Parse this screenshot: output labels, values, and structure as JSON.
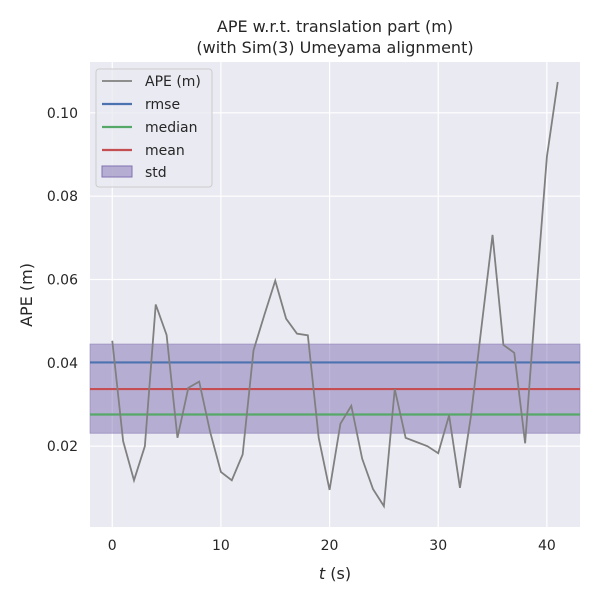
{
  "chart_data": {
    "type": "line",
    "title": "APE w.r.t. translation part (m)",
    "subtitle": "(with Sim(3) Umeyama alignment)",
    "xlabel_italic": "t",
    "xlabel_unit": " (s)",
    "ylabel": "APE (m)",
    "xlim": [
      -2.05,
      43.05
    ],
    "ylim": [
      0.0006,
      0.1122
    ],
    "grid": true,
    "legend_placement": "top-left",
    "x_ticks": [
      0,
      10,
      20,
      30,
      40
    ],
    "x_tick_labels": [
      "0",
      "10",
      "20",
      "30",
      "40"
    ],
    "y_ticks": [
      0.02,
      0.04,
      0.06,
      0.08,
      0.1
    ],
    "y_tick_labels": [
      "0.02",
      "0.04",
      "0.06",
      "0.08",
      "0.10"
    ],
    "series": [
      {
        "name": "APE (m)",
        "color": "#808080",
        "x": [
          0,
          1,
          2,
          3,
          4,
          5,
          6,
          7,
          8,
          9,
          10,
          11,
          12,
          13,
          14,
          15,
          16,
          17,
          18,
          19,
          20,
          21,
          22,
          23,
          24,
          25,
          26,
          27,
          28,
          29,
          30,
          31,
          32,
          33,
          34,
          35,
          36,
          37,
          38,
          39,
          40,
          41
        ],
        "y": [
          0.0453,
          0.0212,
          0.0118,
          0.02,
          0.054,
          0.0467,
          0.022,
          0.034,
          0.0355,
          0.0235,
          0.0138,
          0.0118,
          0.018,
          0.043,
          0.0515,
          0.0597,
          0.0506,
          0.047,
          0.0466,
          0.022,
          0.0095,
          0.0254,
          0.0297,
          0.017,
          0.0097,
          0.0056,
          0.0337,
          0.022,
          0.021,
          0.02,
          0.0183,
          0.0274,
          0.01,
          0.027,
          0.049,
          0.0707,
          0.0443,
          0.0424,
          0.0207,
          0.056,
          0.0894,
          0.1074
        ]
      }
    ],
    "stats": [
      {
        "name": "rmse",
        "value": 0.0401,
        "color": "#4c72b0"
      },
      {
        "name": "median",
        "value": 0.0276,
        "color": "#55a868"
      },
      {
        "name": "mean",
        "value": 0.0337,
        "color": "#c44e52"
      }
    ],
    "std": {
      "name": "std",
      "low": 0.0231,
      "high": 0.0445,
      "color": "#8172b2"
    },
    "legend": [
      "APE (m)",
      "rmse",
      "median",
      "mean",
      "std"
    ]
  }
}
